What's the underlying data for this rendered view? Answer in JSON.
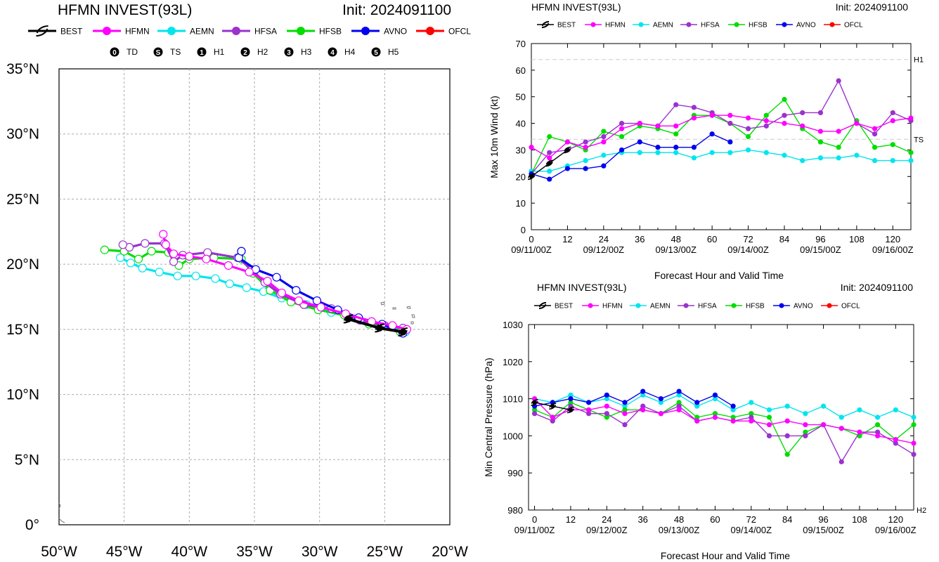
{
  "track_chart": {
    "title": "HFMN INVEST(93L)",
    "init_label": "Init: 2024091100",
    "x_tick_labels": [
      "50°W",
      "45°W",
      "40°W",
      "35°W",
      "30°W",
      "25°W",
      "20°W"
    ],
    "y_tick_labels": [
      "0°",
      "5°N",
      "10°N",
      "15°N",
      "20°N",
      "25°N",
      "30°N",
      "35°N"
    ],
    "intensity_legend": [
      {
        "glyph": "0",
        "label": "TD"
      },
      {
        "glyph": "S",
        "label": "TS"
      },
      {
        "glyph": "1",
        "label": "H1"
      },
      {
        "glyph": "2",
        "label": "H2"
      },
      {
        "glyph": "3",
        "label": "H3"
      },
      {
        "glyph": "4",
        "label": "H4"
      },
      {
        "glyph": "5",
        "label": "H5"
      }
    ]
  },
  "wind_chart": {
    "title": "HFMN INVEST(93L)",
    "init_label": "Init: 2024091100",
    "ylabel": "Max 10m Wind (kt)",
    "xlabel": "Forecast Hour and Valid Time",
    "threshold_labels": [
      {
        "value": 64,
        "label": "H1"
      },
      {
        "value": 34,
        "label": "TS"
      }
    ]
  },
  "pressure_chart": {
    "title": "HFMN INVEST(93L)",
    "init_label": "Init: 2024091100",
    "ylabel": "Min Central Pressure (hPa)",
    "xlabel": "Forecast Hour and Valid Time",
    "threshold_labels": [
      {
        "value": 980,
        "label": "H2"
      }
    ]
  },
  "legend_items": [
    {
      "name": "BEST",
      "color": "#000000"
    },
    {
      "name": "HFMN",
      "color": "#ff00ff"
    },
    {
      "name": "AEMN",
      "color": "#00e5ee"
    },
    {
      "name": "HFSA",
      "color": "#9a32cd"
    },
    {
      "name": "HFSB",
      "color": "#00dd00"
    },
    {
      "name": "AVNO",
      "color": "#0000ee"
    },
    {
      "name": "OFCL",
      "color": "#ff0000"
    }
  ],
  "chart_data": [
    {
      "type": "line",
      "title": "HFMN INVEST(93L)",
      "subtitle": "Init: 2024091100",
      "xlabel": "",
      "ylabel": "",
      "x_units": "longitude (degrees, negative = west)",
      "y_units": "latitude (degrees north)",
      "xlim": [
        -50,
        -20
      ],
      "ylim": [
        0,
        35
      ],
      "grid": true,
      "legend_position": "top",
      "series": [
        {
          "name": "BEST",
          "color": "#000000",
          "points": [
            [
              -23.6,
              14.8
            ],
            [
              -25.4,
              15.1
            ],
            [
              -27.8,
              15.8
            ]
          ]
        },
        {
          "name": "HFMN",
          "color": "#ff00ff",
          "points": [
            [
              -23.3,
              15.0
            ],
            [
              -24.4,
              15.3
            ],
            [
              -26.0,
              15.6
            ],
            [
              -28.0,
              16.2
            ],
            [
              -29.9,
              16.7
            ],
            [
              -31.6,
              17.2
            ],
            [
              -32.9,
              17.8
            ],
            [
              -34.0,
              18.7
            ],
            [
              -35.4,
              19.4
            ],
            [
              -37.0,
              19.9
            ],
            [
              -38.7,
              20.4
            ],
            [
              -40.0,
              20.6
            ],
            [
              -41.2,
              20.8
            ],
            [
              -41.8,
              21.5
            ],
            [
              -42.0,
              22.3
            ]
          ]
        },
        {
          "name": "AEMN",
          "color": "#00e5ee",
          "points": [
            [
              -23.4,
              14.8
            ],
            [
              -25.1,
              15.3
            ],
            [
              -27.0,
              15.8
            ],
            [
              -29.1,
              16.3
            ],
            [
              -31.0,
              16.9
            ],
            [
              -32.9,
              17.4
            ],
            [
              -34.3,
              17.9
            ],
            [
              -35.6,
              18.2
            ],
            [
              -36.9,
              18.5
            ],
            [
              -38.0,
              18.9
            ],
            [
              -39.5,
              19.1
            ],
            [
              -40.9,
              19.1
            ],
            [
              -42.3,
              19.4
            ],
            [
              -43.6,
              19.7
            ],
            [
              -44.5,
              20.1
            ],
            [
              -45.3,
              20.5
            ]
          ]
        },
        {
          "name": "HFSA",
          "color": "#9a32cd",
          "points": [
            [
              -23.6,
              15.1
            ],
            [
              -25.0,
              15.3
            ],
            [
              -26.9,
              15.7
            ],
            [
              -29.1,
              16.6
            ],
            [
              -31.2,
              16.9
            ],
            [
              -33.0,
              17.7
            ],
            [
              -34.2,
              18.6
            ],
            [
              -35.2,
              19.6
            ],
            [
              -36.3,
              20.5
            ],
            [
              -38.6,
              20.9
            ],
            [
              -40.5,
              20.7
            ],
            [
              -41.2,
              20.2
            ],
            [
              -41.9,
              21.6
            ],
            [
              -43.4,
              21.6
            ],
            [
              -44.6,
              21.3
            ],
            [
              -45.1,
              21.5
            ]
          ]
        },
        {
          "name": "HFSB",
          "color": "#00dd00",
          "points": [
            [
              -23.8,
              14.8
            ],
            [
              -26.2,
              15.4
            ],
            [
              -28.1,
              16.1
            ],
            [
              -30.1,
              16.5
            ],
            [
              -32.2,
              17.1
            ],
            [
              -33.8,
              18.0
            ],
            [
              -35.1,
              19.3
            ],
            [
              -36.0,
              20.4
            ],
            [
              -38.1,
              20.5
            ],
            [
              -40.0,
              20.4
            ],
            [
              -40.8,
              19.9
            ],
            [
              -41.6,
              20.9
            ],
            [
              -42.9,
              21.0
            ],
            [
              -43.9,
              20.4
            ],
            [
              -45.0,
              21.0
            ],
            [
              -46.5,
              21.1
            ]
          ]
        },
        {
          "name": "AVNO",
          "color": "#0000ee",
          "points": [
            [
              -23.6,
              14.7
            ],
            [
              -25.2,
              15.4
            ],
            [
              -27.0,
              15.9
            ],
            [
              -28.6,
              16.5
            ],
            [
              -30.2,
              17.2
            ],
            [
              -31.8,
              18.0
            ],
            [
              -33.3,
              19.0
            ],
            [
              -34.9,
              19.6
            ],
            [
              -36.2,
              20.5
            ],
            [
              -36.0,
              21.0
            ]
          ]
        },
        {
          "name": "OFCL",
          "color": "#ff0000",
          "points": []
        }
      ]
    },
    {
      "type": "line",
      "title": "HFMN INVEST(93L)",
      "subtitle": "Init: 2024091100",
      "xlabel": "Forecast Hour and Valid Time",
      "ylabel": "Max 10m Wind (kt)",
      "xlim": [
        0,
        126
      ],
      "ylim": [
        0,
        70
      ],
      "x_ticks": [
        0,
        12,
        24,
        36,
        48,
        60,
        72,
        84,
        96,
        108,
        120
      ],
      "y_ticks": [
        0,
        10,
        20,
        30,
        40,
        50,
        60,
        70
      ],
      "date_labels": [
        {
          "x": 0,
          "label": "09/11/00Z"
        },
        {
          "x": 24,
          "label": "09/12/00Z"
        },
        {
          "x": 48,
          "label": "09/13/00Z"
        },
        {
          "x": 72,
          "label": "09/14/00Z"
        },
        {
          "x": 96,
          "label": "09/15/00Z"
        },
        {
          "x": 120,
          "label": "09/16/00Z"
        }
      ],
      "reference_lines": [
        {
          "y": 64,
          "label": "H1"
        },
        {
          "y": 34,
          "label": "TS"
        }
      ],
      "grid": false,
      "legend_position": "top",
      "series": [
        {
          "name": "BEST",
          "color": "#000000",
          "x": [
            0,
            6,
            12
          ],
          "values": [
            20,
            25,
            30
          ]
        },
        {
          "name": "HFMN",
          "color": "#ff00ff",
          "x": [
            0,
            6,
            12,
            18,
            24,
            30,
            36,
            42,
            48,
            54,
            60,
            66,
            72,
            78,
            84,
            90,
            96,
            102,
            108,
            114,
            120,
            126
          ],
          "values": [
            31,
            27,
            33,
            31,
            33,
            38,
            40,
            39,
            39,
            42,
            43,
            43,
            42,
            41,
            40,
            39,
            37,
            37,
            40,
            38,
            41,
            42
          ]
        },
        {
          "name": "AEMN",
          "color": "#00e5ee",
          "x": [
            0,
            6,
            12,
            18,
            24,
            30,
            36,
            42,
            48,
            54,
            60,
            66,
            72,
            78,
            84,
            90,
            96,
            102,
            108,
            114,
            120,
            126
          ],
          "values": [
            22,
            22,
            24,
            26,
            28,
            29,
            29,
            29,
            29,
            27,
            29,
            29,
            30,
            29,
            28,
            26,
            27,
            27,
            28,
            26,
            26,
            26
          ]
        },
        {
          "name": "HFSA",
          "color": "#9a32cd",
          "x": [
            0,
            6,
            12,
            18,
            24,
            30,
            36,
            42,
            48,
            54,
            60,
            66,
            72,
            78,
            84,
            90,
            96,
            102,
            108,
            114,
            120,
            126
          ],
          "values": [
            21,
            29,
            30,
            33,
            35,
            40,
            40,
            39,
            47,
            46,
            44,
            40,
            38,
            39,
            43,
            44,
            44,
            56,
            40,
            36,
            44,
            41
          ]
        },
        {
          "name": "HFSB",
          "color": "#00dd00",
          "x": [
            0,
            6,
            12,
            18,
            24,
            30,
            36,
            42,
            48,
            54,
            60,
            66,
            72,
            78,
            84,
            90,
            96,
            102,
            108,
            114,
            120,
            126
          ],
          "values": [
            21,
            35,
            33,
            30,
            37,
            35,
            39,
            38,
            36,
            43,
            43,
            40,
            35,
            43,
            49,
            38,
            33,
            31,
            41,
            31,
            32,
            29
          ]
        },
        {
          "name": "AVNO",
          "color": "#0000ee",
          "x": [
            0,
            6,
            12,
            18,
            24,
            30,
            36,
            42,
            48,
            54,
            60,
            66
          ],
          "values": [
            21,
            19,
            23,
            23,
            24,
            30,
            33,
            31,
            31,
            31,
            36,
            33
          ]
        },
        {
          "name": "OFCL",
          "color": "#ff0000",
          "x": [],
          "values": []
        }
      ]
    },
    {
      "type": "line",
      "title": "HFMN INVEST(93L)",
      "subtitle": "Init: 2024091100",
      "xlabel": "Forecast Hour and Valid Time",
      "ylabel": "Min Central Pressure (hPa)",
      "xlim": [
        -2,
        126
      ],
      "ylim": [
        980,
        1030
      ],
      "x_ticks": [
        0,
        12,
        24,
        36,
        48,
        60,
        72,
        84,
        96,
        108,
        120
      ],
      "y_ticks": [
        980,
        990,
        1000,
        1010,
        1020,
        1030
      ],
      "date_labels": [
        {
          "x": 0,
          "label": "09/11/00Z"
        },
        {
          "x": 24,
          "label": "09/12/00Z"
        },
        {
          "x": 48,
          "label": "09/13/00Z"
        },
        {
          "x": 72,
          "label": "09/14/00Z"
        },
        {
          "x": 96,
          "label": "09/15/00Z"
        },
        {
          "x": 120,
          "label": "09/16/00Z"
        }
      ],
      "reference_lines": [
        {
          "y": 980,
          "label": "H2"
        }
      ],
      "grid": false,
      "legend_position": "top",
      "series": [
        {
          "name": "BEST",
          "color": "#000000",
          "x": [
            0,
            6,
            12
          ],
          "values": [
            1009,
            1008,
            1007
          ]
        },
        {
          "name": "HFMN",
          "color": "#ff00ff",
          "x": [
            0,
            6,
            12,
            18,
            24,
            30,
            36,
            42,
            48,
            54,
            60,
            66,
            72,
            78,
            84,
            90,
            96,
            102,
            108,
            114,
            120,
            126
          ],
          "values": [
            1010,
            1005,
            1007,
            1007,
            1008,
            1006,
            1007,
            1006,
            1007,
            1004,
            1005,
            1004,
            1004,
            1003,
            1004,
            1003,
            1003,
            1002,
            1001,
            1000,
            999,
            998
          ]
        },
        {
          "name": "AEMN",
          "color": "#00e5ee",
          "x": [
            0,
            6,
            12,
            18,
            24,
            30,
            36,
            42,
            48,
            54,
            60,
            66,
            72,
            78,
            84,
            90,
            96,
            102,
            108,
            114,
            120,
            126
          ],
          "values": [
            1010,
            1009,
            1011,
            1009,
            1010,
            1008,
            1011,
            1009,
            1011,
            1008,
            1010,
            1007,
            1009,
            1007,
            1008,
            1006,
            1008,
            1005,
            1007,
            1005,
            1007,
            1005
          ]
        },
        {
          "name": "HFSA",
          "color": "#9a32cd",
          "x": [
            0,
            6,
            12,
            18,
            24,
            30,
            36,
            42,
            48,
            54,
            60,
            66,
            72,
            78,
            84,
            90,
            96,
            102,
            108,
            114,
            120,
            126
          ],
          "values": [
            1006,
            1004,
            1008,
            1006,
            1006,
            1003,
            1008,
            1006,
            1008,
            1004,
            1005,
            1004,
            1005,
            1000,
            1000,
            1000,
            1003,
            993,
            1001,
            1001,
            998,
            995
          ]
        },
        {
          "name": "HFSB",
          "color": "#00dd00",
          "x": [
            0,
            6,
            12,
            18,
            24,
            30,
            36,
            42,
            48,
            54,
            60,
            66,
            72,
            78,
            84,
            90,
            96,
            102,
            108,
            114,
            120,
            126
          ],
          "values": [
            1007,
            1005,
            1009,
            1007,
            1005,
            1007,
            1007,
            1006,
            1009,
            1005,
            1006,
            1005,
            1006,
            1005,
            995,
            1001,
            1003,
            1002,
            1000,
            1003,
            999,
            1003
          ]
        },
        {
          "name": "AVNO",
          "color": "#0000ee",
          "x": [
            0,
            6,
            12,
            18,
            24,
            30,
            36,
            42,
            48,
            54,
            60,
            66
          ],
          "values": [
            1008,
            1009,
            1010,
            1009,
            1011,
            1009,
            1012,
            1010,
            1012,
            1009,
            1011,
            1008
          ]
        },
        {
          "name": "OFCL",
          "color": "#ff0000",
          "x": [],
          "values": []
        }
      ]
    }
  ]
}
